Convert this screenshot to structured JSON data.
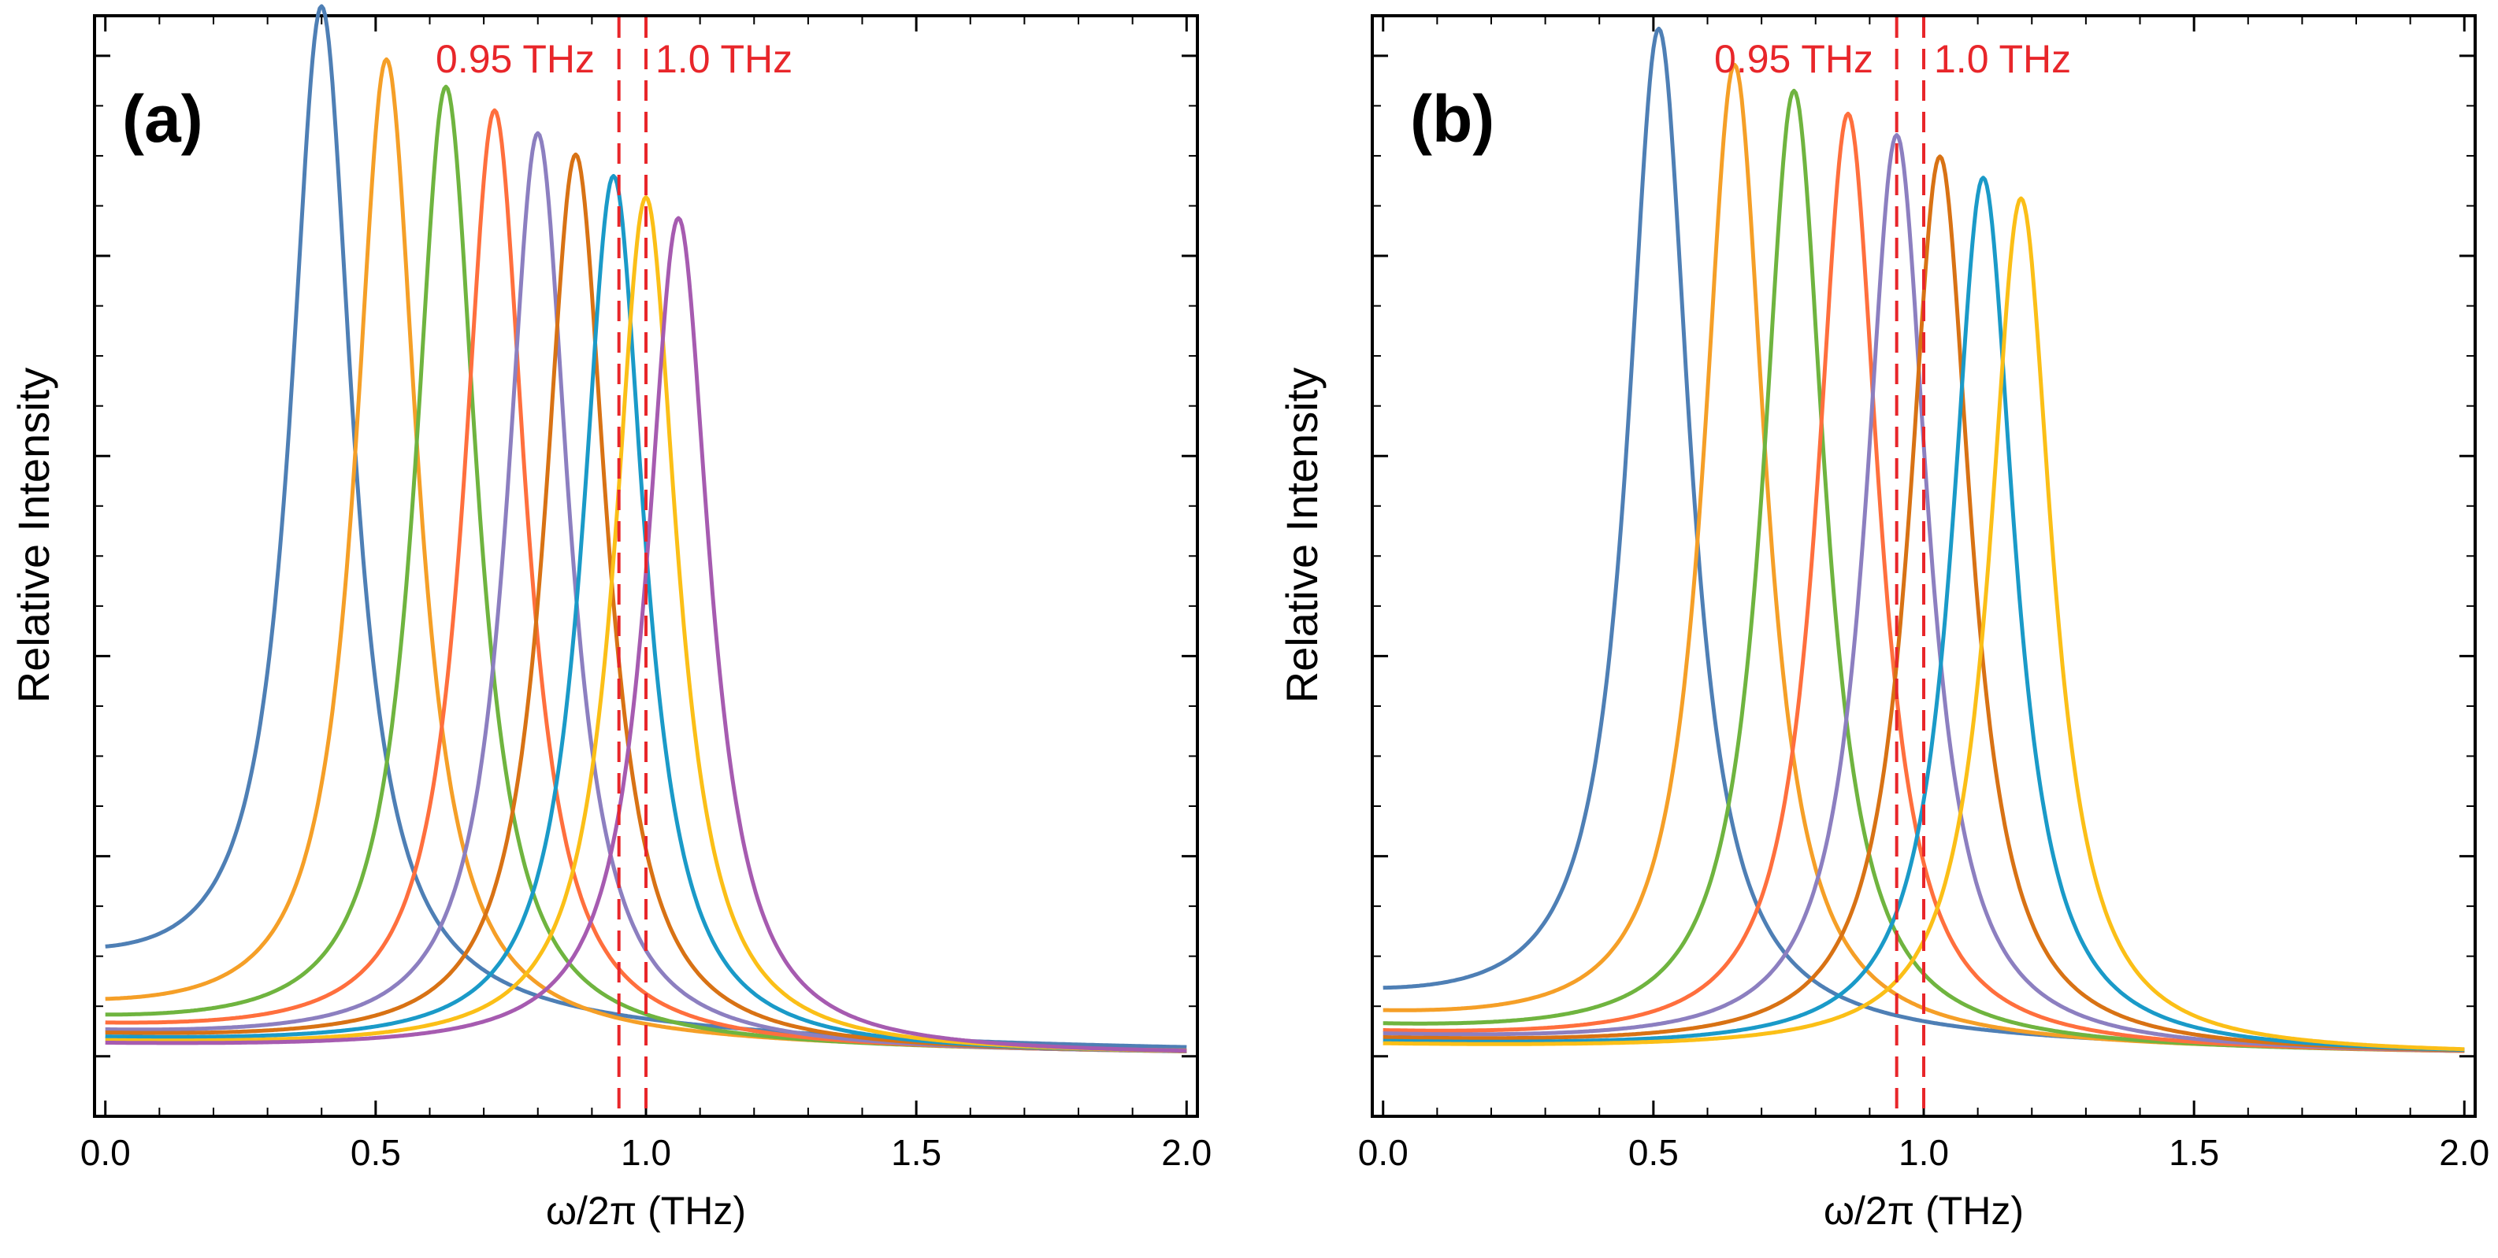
{
  "chart_data": [
    {
      "type": "line",
      "panel_label": "(a)",
      "xlabel": "ω/2π (THz)",
      "ylabel": "Relative Intensity",
      "xlim": [
        -0.02,
        2.02
      ],
      "ylim": [
        -0.06,
        1.04
      ],
      "xticks": [
        "0.0",
        "0.5",
        "1.0",
        "1.5",
        "2.0"
      ],
      "xtick_values": [
        0.0,
        0.5,
        1.0,
        1.5,
        2.0
      ],
      "yticks_labeled": false,
      "annotations": [
        {
          "text": "0.95 THz",
          "x": 0.95,
          "color": "#e8262a"
        },
        {
          "text": "1.0 THz",
          "x": 1.0,
          "color": "#e8262a"
        }
      ],
      "series": [
        {
          "name": "curve 1",
          "color": "#4e7fb5",
          "peak_x": 0.4,
          "peak_y": 1.0,
          "width": 0.14,
          "base": 0.08
        },
        {
          "name": "curve 2",
          "color": "#f59f27",
          "peak_x": 0.52,
          "peak_y": 0.975,
          "width": 0.14,
          "base": 0.04
        },
        {
          "name": "curve 3",
          "color": "#6fb43f",
          "peak_x": 0.63,
          "peak_y": 0.955,
          "width": 0.14,
          "base": 0.03
        },
        {
          "name": "curve 4",
          "color": "#ff6f3d",
          "peak_x": 0.72,
          "peak_y": 0.935,
          "width": 0.14,
          "base": 0.025
        },
        {
          "name": "curve 5",
          "color": "#8c7fc0",
          "peak_x": 0.8,
          "peak_y": 0.915,
          "width": 0.14,
          "base": 0.02
        },
        {
          "name": "curve 6",
          "color": "#d87214",
          "peak_x": 0.87,
          "peak_y": 0.895,
          "width": 0.14,
          "base": 0.018
        },
        {
          "name": "curve 7",
          "color": "#1a9ac8",
          "peak_x": 0.94,
          "peak_y": 0.875,
          "width": 0.14,
          "base": 0.015
        },
        {
          "name": "curve 8",
          "color": "#fbbf17",
          "peak_x": 1.0,
          "peak_y": 0.855,
          "width": 0.14,
          "base": 0.012
        },
        {
          "name": "curve 9",
          "color": "#a65bb0",
          "peak_x": 1.06,
          "peak_y": 0.835,
          "width": 0.14,
          "base": 0.01
        }
      ]
    },
    {
      "type": "line",
      "panel_label": "(b)",
      "xlabel": "ω/2π (THz)",
      "ylabel": "Relative Intensity",
      "xlim": [
        -0.02,
        2.02
      ],
      "ylim": [
        -0.06,
        1.04
      ],
      "xticks": [
        "0.0",
        "0.5",
        "1.0",
        "1.5",
        "2.0"
      ],
      "xtick_values": [
        0.0,
        0.5,
        1.0,
        1.5,
        2.0
      ],
      "yticks_labeled": false,
      "annotations": [
        {
          "text": "0.95 THz",
          "x": 0.95,
          "color": "#e8262a"
        },
        {
          "text": "1.0 THz",
          "x": 1.0,
          "color": "#e8262a"
        }
      ],
      "series": [
        {
          "name": "curve 1",
          "color": "#4e7fb5",
          "peak_x": 0.51,
          "peak_y": 1.0,
          "width": 0.14,
          "base": 0.05
        },
        {
          "name": "curve 2",
          "color": "#f59f27",
          "peak_x": 0.65,
          "peak_y": 0.975,
          "width": 0.14,
          "base": 0.035
        },
        {
          "name": "curve 3",
          "color": "#6fb43f",
          "peak_x": 0.76,
          "peak_y": 0.955,
          "width": 0.14,
          "base": 0.025
        },
        {
          "name": "curve 4",
          "color": "#ff6f3d",
          "peak_x": 0.86,
          "peak_y": 0.935,
          "width": 0.14,
          "base": 0.02
        },
        {
          "name": "curve 5",
          "color": "#8c7fc0",
          "peak_x": 0.95,
          "peak_y": 0.915,
          "width": 0.14,
          "base": 0.018
        },
        {
          "name": "curve 6",
          "color": "#d87214",
          "peak_x": 1.03,
          "peak_y": 0.895,
          "width": 0.14,
          "base": 0.015
        },
        {
          "name": "curve 7",
          "color": "#1a9ac8",
          "peak_x": 1.11,
          "peak_y": 0.875,
          "width": 0.14,
          "base": 0.012
        },
        {
          "name": "curve 8",
          "color": "#fbbf17",
          "peak_x": 1.18,
          "peak_y": 0.855,
          "width": 0.14,
          "base": 0.01
        }
      ]
    }
  ]
}
